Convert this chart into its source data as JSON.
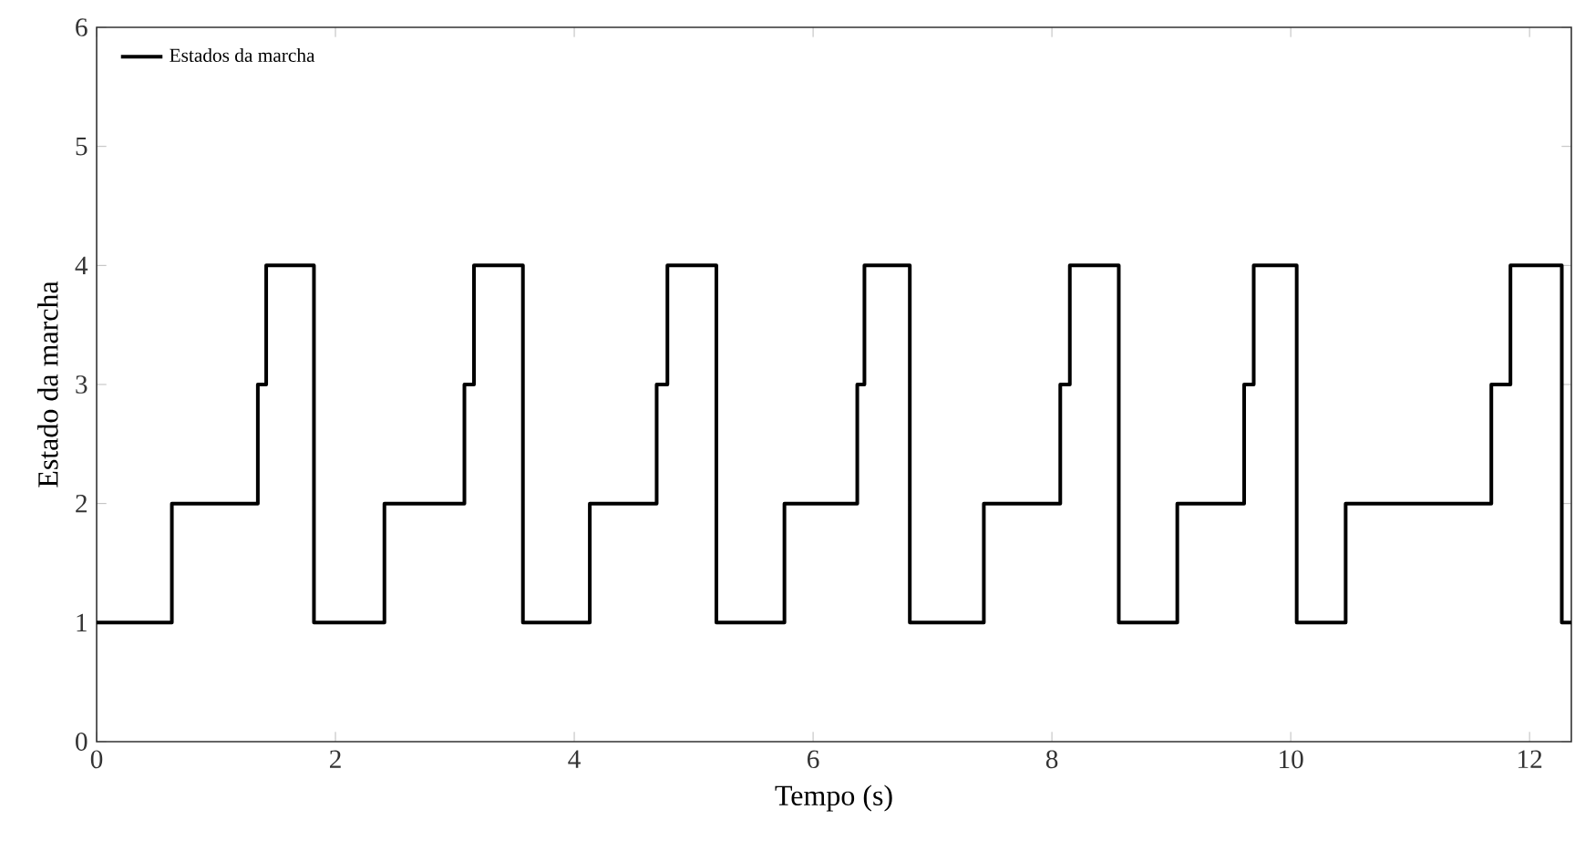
{
  "chart_data": {
    "type": "step",
    "xlabel": "Tempo (s)",
    "ylabel": "Estado da marcha",
    "series": [
      {
        "name": "Estados da marcha",
        "color": "#000000",
        "x": [
          0,
          0.63,
          1.35,
          1.42,
          1.82,
          2.41,
          3.08,
          3.16,
          3.57,
          4.13,
          4.69,
          4.78,
          5.19,
          5.76,
          6.37,
          6.43,
          6.81,
          7.43,
          8.07,
          8.15,
          8.56,
          9.05,
          9.61,
          9.69,
          10.05,
          10.46,
          11.68,
          11.84,
          12.27,
          12.35
        ],
        "values": [
          1,
          2,
          3,
          4,
          1,
          2,
          3,
          4,
          1,
          2,
          3,
          4,
          1,
          2,
          3,
          4,
          1,
          2,
          3,
          4,
          1,
          2,
          3,
          4,
          1,
          2,
          3,
          4,
          1,
          1
        ]
      }
    ],
    "xlim": [
      0,
      12.35
    ],
    "xticks": [
      0,
      2,
      4,
      6,
      8,
      10,
      12
    ],
    "ylim": [
      0,
      6
    ],
    "yticks": [
      0,
      1,
      2,
      3,
      4,
      5,
      6
    ],
    "grid": false,
    "legend": "top left",
    "marker": "none",
    "line_style": "solid"
  }
}
